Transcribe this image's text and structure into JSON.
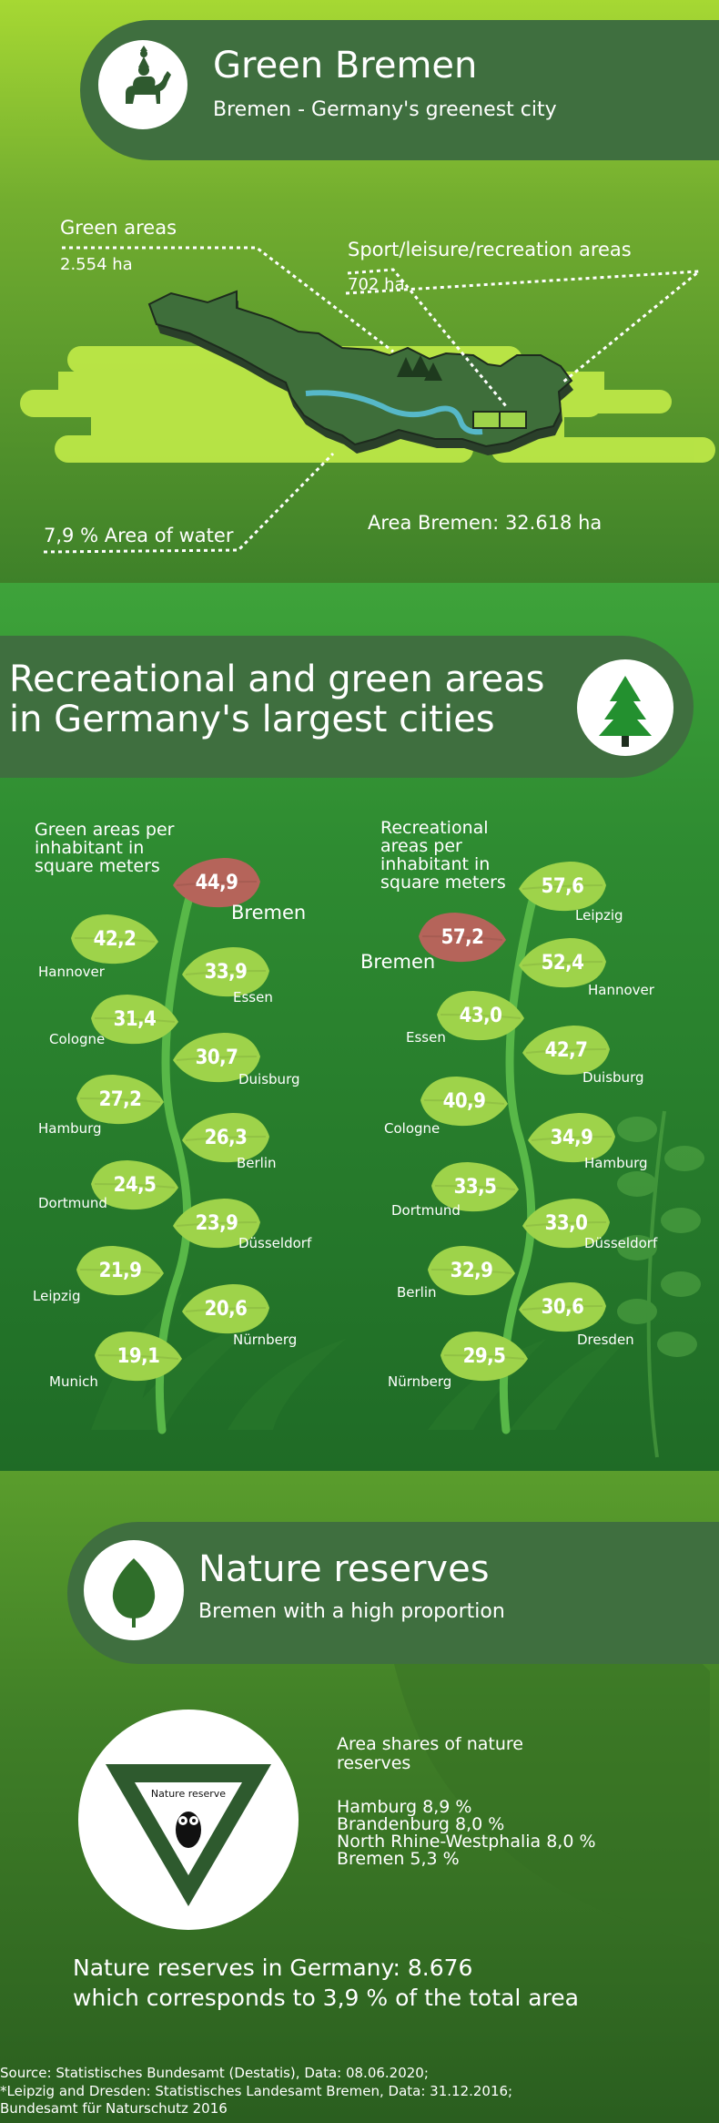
{
  "header": {
    "title": "Green Bremen",
    "subtitle": "Bremen - Germany's greenest city"
  },
  "map": {
    "green_areas_label": "Green areas",
    "green_areas_value": "2.554 ha",
    "sport_label": "Sport/leisure/recreation areas",
    "sport_value": "702 ha",
    "water_label": "7,9 % Area of water",
    "area_label": "Area Bremen: 32.618 ha"
  },
  "section2": {
    "title_line1": "Recreational and green areas",
    "title_line2": "in Germany's largest cities"
  },
  "chart_data": [
    {
      "type": "bar",
      "title": "Green areas per inhabitant in square meters",
      "title_lines": [
        "Green areas per",
        "inhabitant in",
        "square meters"
      ],
      "categories": [
        "Bremen",
        "Hannover",
        "Essen",
        "Cologne",
        "Duisburg",
        "Hamburg",
        "Berlin",
        "Dortmund",
        "Düsseldorf",
        "Leipzig",
        "Nürnberg",
        "Munich"
      ],
      "values": [
        44.9,
        42.2,
        33.9,
        31.4,
        30.7,
        27.2,
        26.3,
        24.5,
        23.9,
        21.9,
        20.6,
        19.1
      ],
      "labels": [
        "44,9",
        "42,2",
        "33,9",
        "31,4",
        "30,7",
        "27,2",
        "26,3",
        "24,5",
        "23,9",
        "21,9",
        "20,6",
        "19,1"
      ],
      "highlight": "Bremen"
    },
    {
      "type": "bar",
      "title": "Recreational areas per inhabitant in square meters",
      "title_lines": [
        "Recreational",
        "areas per",
        "inhabitant in",
        "square meters"
      ],
      "categories": [
        "Leipzig",
        "Bremen",
        "Hannover",
        "Essen",
        "Duisburg",
        "Cologne",
        "Hamburg",
        "Dortmund",
        "Düsseldorf",
        "Berlin",
        "Dresden",
        "Nürnberg"
      ],
      "values": [
        57.6,
        57.2,
        52.4,
        43.0,
        42.7,
        40.9,
        34.9,
        33.5,
        33.0,
        32.9,
        30.6,
        29.5
      ],
      "labels": [
        "57,6",
        "57,2",
        "52,4",
        "43,0",
        "42,7",
        "40,9",
        "34,9",
        "33,5",
        "33,0",
        "32,9",
        "30,6",
        "29,5"
      ],
      "highlight": "Bremen"
    }
  ],
  "section3": {
    "title": "Nature reserves",
    "subtitle": "Bremen with a high proportion",
    "sign_text": "Nature reserve",
    "shares_title_line1": "Area shares of nature",
    "shares_title_line2": "reserves",
    "shares": [
      "Hamburg 8,9 %",
      "Brandenburg 8,0 %",
      "North Rhine-Westphalia 8,0 %",
      "Bremen 5,3 %"
    ],
    "summary_line1": "Nature reserves in Germany: 8.676",
    "summary_line2": "which corresponds to 3,9 % of the total area"
  },
  "footer": {
    "line1": "Source: Statistisches Bundesamt (Destatis), Data: 08.06.2020;",
    "line2": "*Leipzig and Dresden: Statistisches Landesamt Bremen, Data: 31.12.2016;",
    "line3": "Bundesamt für Naturschutz 2016"
  },
  "colors": {
    "banner": "#3f6f3f",
    "leaf_green": "#9ed34a",
    "leaf_highlight": "#b5645a",
    "stem": "#58b848"
  }
}
